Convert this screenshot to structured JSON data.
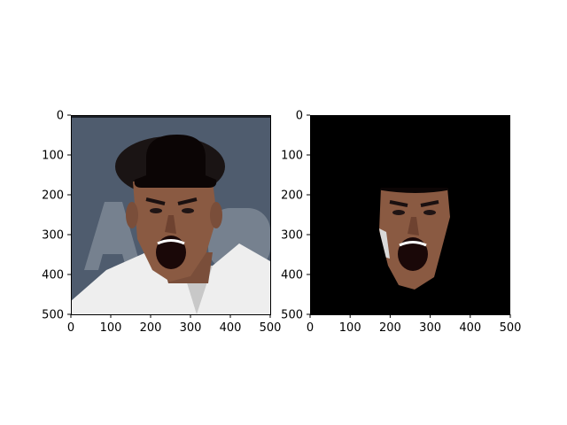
{
  "chart_data": [
    {
      "type": "image",
      "title": "",
      "xlabel": "",
      "ylabel": "",
      "xlim": [
        0,
        500
      ],
      "ylim": [
        500,
        0
      ],
      "xticks": [
        0,
        100,
        200,
        300,
        400,
        500
      ],
      "yticks": [
        0,
        100,
        200,
        300,
        400,
        500
      ],
      "content": "photo-face-with-black-cap",
      "colors": {
        "background": "#4f5c6e",
        "shirt": "#eeeeee",
        "skin": "#8a5a42",
        "cap": "#0b0505"
      }
    },
    {
      "type": "image",
      "title": "",
      "xlabel": "",
      "ylabel": "",
      "xlim": [
        0,
        500
      ],
      "ylim": [
        500,
        0
      ],
      "xticks": [
        0,
        100,
        200,
        300,
        400,
        500
      ],
      "yticks": [
        0,
        100,
        200,
        300,
        400,
        500
      ],
      "content": "segmented-face-on-black",
      "colors": {
        "background": "#000000",
        "skin": "#8a5a42"
      }
    }
  ]
}
